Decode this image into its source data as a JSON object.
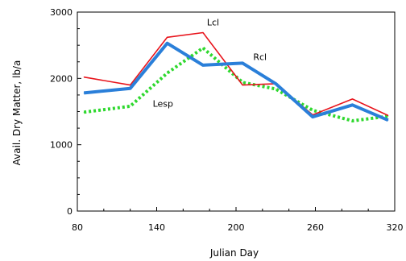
{
  "chart_data": {
    "type": "line",
    "title": "",
    "xlabel": "Julian Day",
    "ylabel": "Avail. Dry Matter, lb/a",
    "xlim": [
      80,
      320
    ],
    "ylim": [
      0,
      3000
    ],
    "xticks": [
      80,
      140,
      200,
      260,
      320
    ],
    "yticks": [
      0,
      1000,
      2000,
      3000
    ],
    "grid": false,
    "legend": "none",
    "series": [
      {
        "name": "Lcl",
        "color": "#e8141c",
        "style": "solid",
        "x": [
          85,
          120,
          148,
          175,
          205,
          230,
          258,
          288,
          315
        ],
        "y": [
          2020,
          1900,
          2620,
          2690,
          1900,
          1920,
          1450,
          1690,
          1440
        ]
      },
      {
        "name": "Rcl",
        "color": "#2a7fd9",
        "style": "thick",
        "x": [
          85,
          120,
          148,
          175,
          205,
          230,
          258,
          288,
          315
        ],
        "y": [
          1780,
          1850,
          2530,
          2200,
          2230,
          1920,
          1420,
          1600,
          1370
        ]
      },
      {
        "name": "Lesp",
        "color": "#2ed82e",
        "style": "dotted",
        "x": [
          85,
          120,
          148,
          175,
          205,
          230,
          258,
          288,
          315
        ],
        "y": [
          1490,
          1580,
          2080,
          2460,
          1940,
          1840,
          1520,
          1360,
          1430
        ]
      }
    ],
    "annotations": [
      {
        "text": "Lcl",
        "series": "Lcl",
        "x": 178,
        "y": 2800
      },
      {
        "text": "Rcl",
        "series": "Rcl",
        "x": 213,
        "y": 2280
      },
      {
        "text": "Lesp",
        "series": "Lesp",
        "x": 137,
        "y": 1570
      }
    ]
  }
}
